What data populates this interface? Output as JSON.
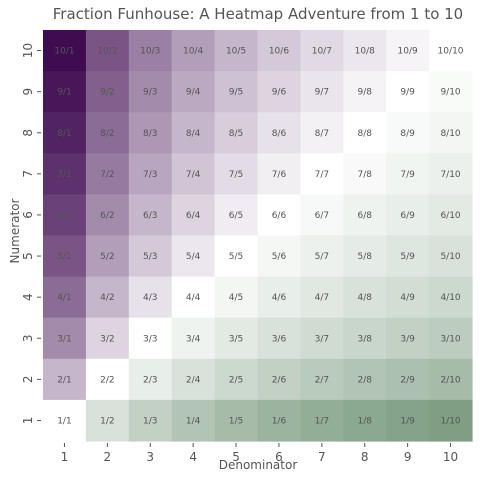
{
  "chart_data": {
    "type": "heatmap",
    "title": "Fraction Funhouse: A Heatmap Adventure from 1 to 10",
    "xlabel": "Denominator",
    "ylabel": "Numerator",
    "x_categories": [
      "1",
      "2",
      "3",
      "4",
      "5",
      "6",
      "7",
      "8",
      "9",
      "10"
    ],
    "y_categories": [
      "1",
      "2",
      "3",
      "4",
      "5",
      "6",
      "7",
      "8",
      "9",
      "10"
    ],
    "value_rule": "numerator / denominator",
    "color_scale": "log",
    "colors": {
      "low": "#7f9f84",
      "mid": "#ffffff",
      "high": "#3f0b51",
      "text": "#555555"
    }
  }
}
